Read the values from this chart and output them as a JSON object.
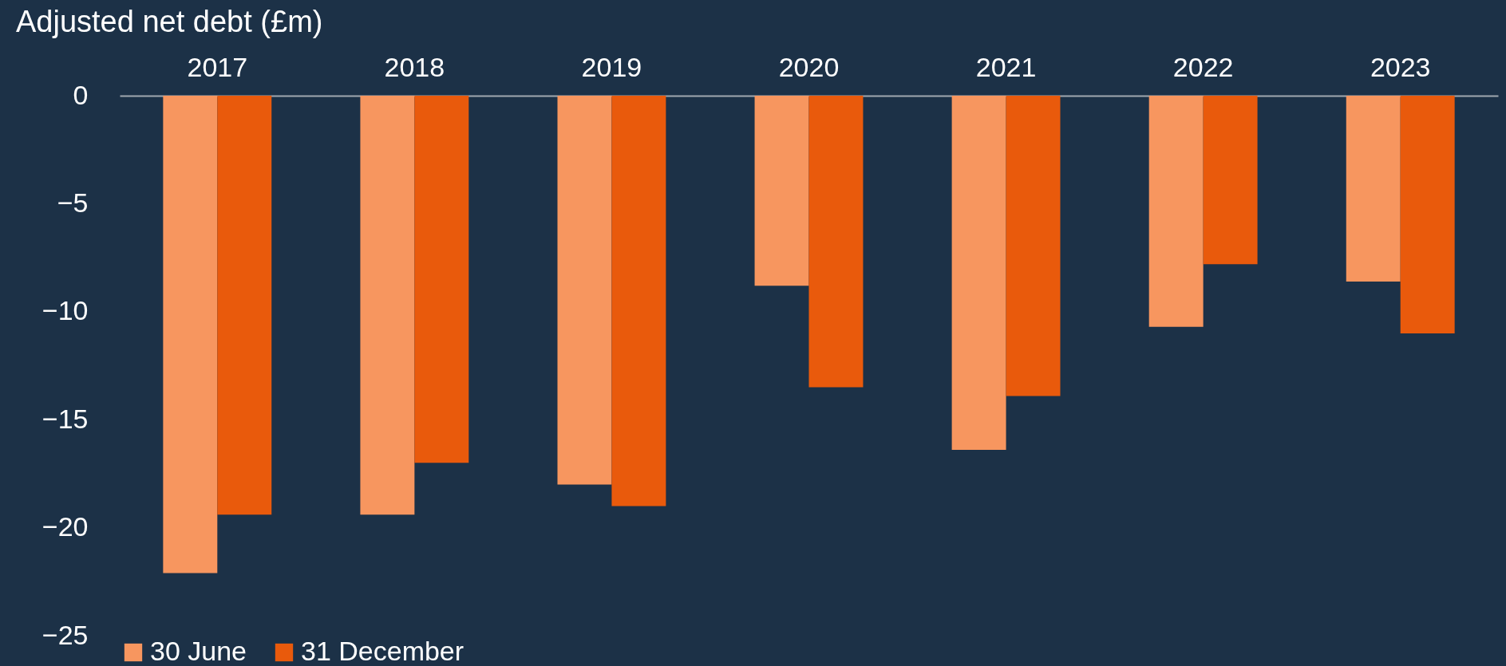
{
  "chart_data": {
    "type": "bar",
    "title": "Adjusted net debt (£m)",
    "categories": [
      "2017",
      "2018",
      "2019",
      "2020",
      "2021",
      "2022",
      "2023"
    ],
    "series": [
      {
        "name": "30 June",
        "color": "#f7965f",
        "values": [
          -22.1,
          -19.4,
          -18.0,
          -8.8,
          -16.4,
          -10.7,
          -8.6
        ]
      },
      {
        "name": "31 December",
        "color": "#e95a0c",
        "values": [
          -19.4,
          -17.0,
          -19.0,
          -13.5,
          -13.9,
          -7.8,
          -11.0
        ]
      }
    ],
    "ylim": [
      -25,
      0
    ],
    "yticks": [
      0,
      -5,
      -10,
      -15,
      -20,
      -25
    ],
    "grid": false,
    "legend": "bottom"
  }
}
